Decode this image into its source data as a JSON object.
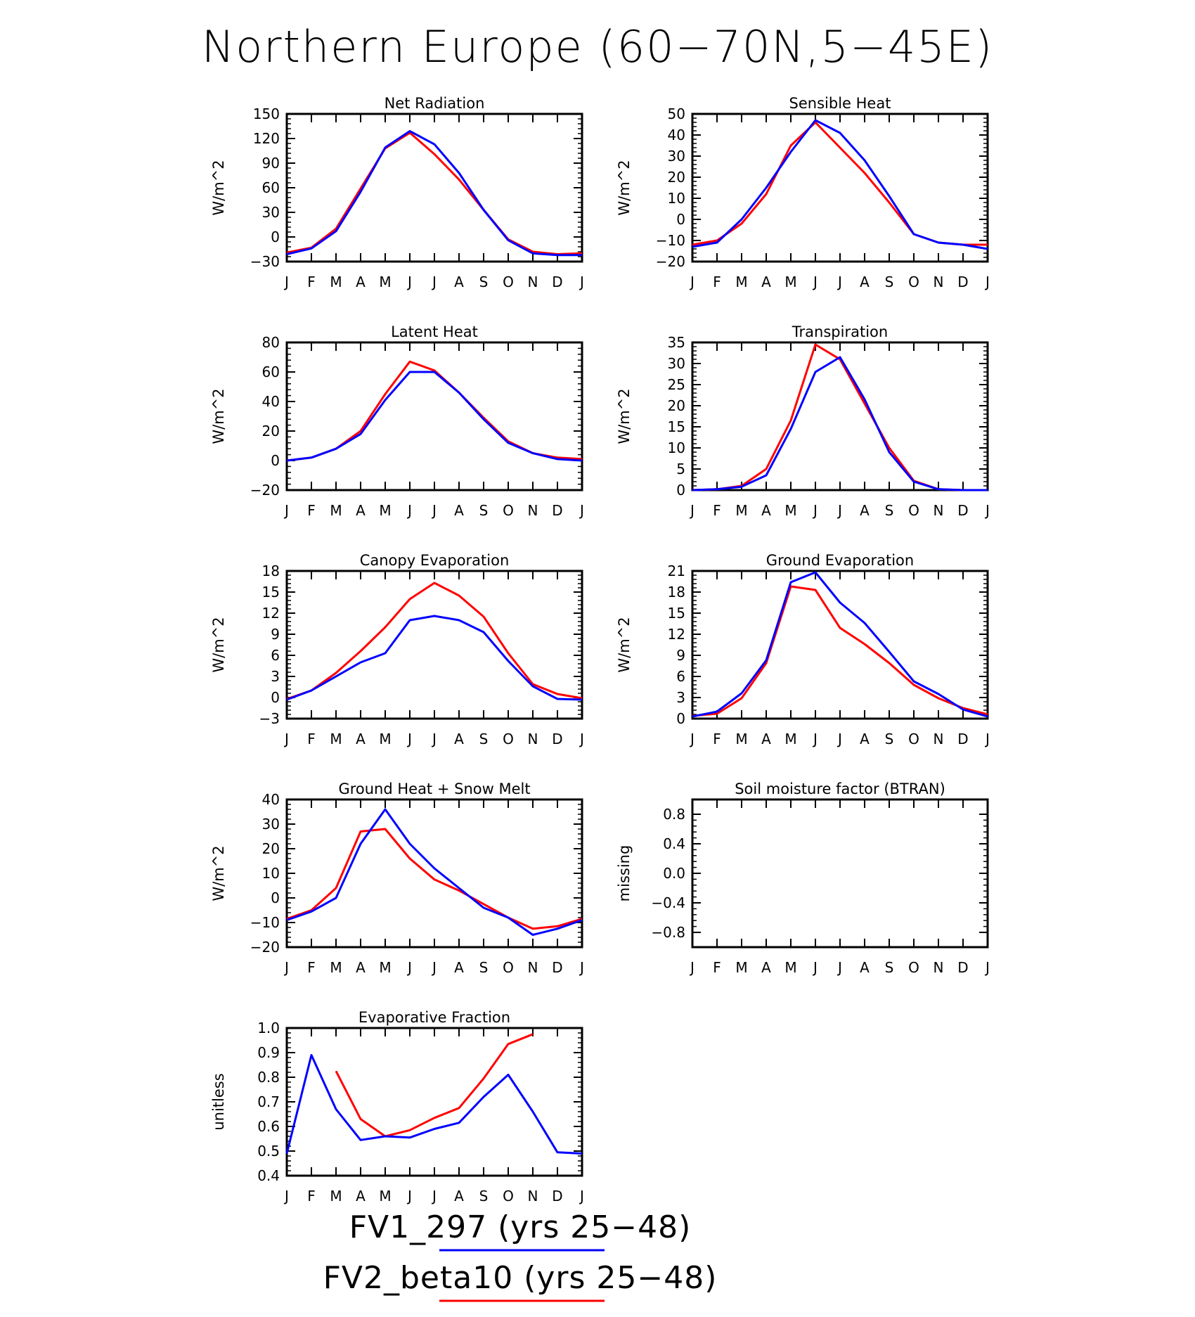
{
  "title": "Northern Europe (60−70N,5−45E)",
  "months": [
    "J",
    "F",
    "M",
    "A",
    "M",
    "J",
    "J",
    "A",
    "S",
    "O",
    "N",
    "D",
    "J"
  ],
  "colors": {
    "FV1_297": "#0000ff",
    "FV2_beta10": "#ff0000"
  },
  "legend": [
    {
      "label": "FV1_297 (yrs 25−48)",
      "color": "#0000ff"
    },
    {
      "label": "FV2_beta10 (yrs 25−48)",
      "color": "#ff0000"
    }
  ],
  "chart_data": [
    {
      "type": "line",
      "title": "Net Radiation",
      "ylabel": "W/m^2",
      "ylim": [
        -30,
        150
      ],
      "yticks": [
        -30,
        0,
        30,
        60,
        90,
        120,
        150
      ],
      "ytick_labels": [
        "−30",
        "0",
        "30",
        "60",
        "90",
        "120",
        "150"
      ],
      "series": [
        {
          "name": "FV1_297",
          "values": [
            -21,
            -14,
            7,
            55,
            109,
            129,
            113,
            78,
            33,
            -4,
            -20,
            -22,
            -22
          ]
        },
        {
          "name": "FV2_beta10",
          "values": [
            -19,
            -13,
            10,
            59,
            108,
            127,
            101,
            70,
            33,
            -3,
            -18,
            -21,
            -20
          ]
        }
      ]
    },
    {
      "type": "line",
      "title": "Sensible Heat",
      "ylabel": "W/m^2",
      "ylim": [
        -20,
        50
      ],
      "yticks": [
        -20,
        -10,
        0,
        10,
        20,
        30,
        40,
        50
      ],
      "ytick_labels": [
        "−20",
        "−10",
        "0",
        "10",
        "20",
        "30",
        "40",
        "50"
      ],
      "series": [
        {
          "name": "FV1_297",
          "values": [
            -13,
            -11,
            0,
            15,
            32,
            47,
            41,
            28,
            11,
            -7,
            -11,
            -12,
            -14
          ]
        },
        {
          "name": "FV2_beta10",
          "values": [
            -12,
            -10,
            -2,
            12,
            35,
            46,
            34,
            22,
            8,
            -7,
            -11,
            -12,
            -12
          ]
        }
      ]
    },
    {
      "type": "line",
      "title": "Latent Heat",
      "ylabel": "W/m^2",
      "ylim": [
        -20,
        80
      ],
      "yticks": [
        -20,
        0,
        20,
        40,
        60,
        80
      ],
      "ytick_labels": [
        "−20",
        "0",
        "20",
        "40",
        "60",
        "80"
      ],
      "series": [
        {
          "name": "FV1_297",
          "values": [
            0,
            2,
            8,
            18,
            41,
            60,
            60,
            46,
            28,
            12,
            5,
            1,
            0
          ]
        },
        {
          "name": "FV2_beta10",
          "values": [
            0,
            2,
            8,
            20,
            45,
            67,
            61,
            46,
            29,
            13,
            5,
            2,
            1
          ]
        }
      ]
    },
    {
      "type": "line",
      "title": "Transpiration",
      "ylabel": "W/m^2",
      "ylim": [
        0,
        35
      ],
      "yticks": [
        0,
        5,
        10,
        15,
        20,
        25,
        30,
        35
      ],
      "ytick_labels": [
        "0",
        "5",
        "10",
        "15",
        "20",
        "25",
        "30",
        "35"
      ],
      "series": [
        {
          "name": "FV1_297",
          "values": [
            0,
            0.2,
            0.8,
            3.5,
            14.5,
            28,
            31.5,
            21.5,
            9,
            2,
            0.2,
            0,
            0
          ]
        },
        {
          "name": "FV2_beta10",
          "values": [
            0,
            0.2,
            1,
            5,
            16.5,
            34.5,
            31,
            20.5,
            10,
            2.2,
            0.2,
            0,
            0
          ]
        }
      ]
    },
    {
      "type": "line",
      "title": "Canopy Evaporation",
      "ylabel": "W/m^2",
      "ylim": [
        -3,
        18
      ],
      "yticks": [
        -3,
        0,
        3,
        6,
        9,
        12,
        15,
        18
      ],
      "ytick_labels": [
        "−3",
        "0",
        "3",
        "6",
        "9",
        "12",
        "15",
        "18"
      ],
      "series": [
        {
          "name": "FV1_297",
          "values": [
            -0.3,
            1,
            3,
            5,
            6.3,
            11,
            11.6,
            11,
            9.3,
            5.2,
            1.6,
            -0.2,
            -0.3
          ]
        },
        {
          "name": "FV2_beta10",
          "values": [
            -0.2,
            1,
            3.5,
            6.6,
            10,
            14,
            16.3,
            14.5,
            11.5,
            6.3,
            1.9,
            0.5,
            -0.1
          ]
        }
      ]
    },
    {
      "type": "line",
      "title": "Ground Evaporation",
      "ylabel": "W/m^2",
      "ylim": [
        0,
        21
      ],
      "yticks": [
        0,
        3,
        6,
        9,
        12,
        15,
        18,
        21
      ],
      "ytick_labels": [
        "0",
        "3",
        "6",
        "9",
        "12",
        "15",
        "18",
        "21"
      ],
      "series": [
        {
          "name": "FV1_297",
          "values": [
            0.3,
            1,
            3.6,
            8.3,
            19.4,
            20.8,
            16.5,
            13.6,
            9.5,
            5.3,
            3.5,
            1.3,
            0.3
          ]
        },
        {
          "name": "FV2_beta10",
          "values": [
            0.4,
            0.7,
            2.9,
            7.9,
            18.8,
            18.3,
            12.9,
            10.6,
            7.9,
            4.8,
            2.9,
            1.5,
            0.6
          ]
        }
      ]
    },
    {
      "type": "line",
      "title": "Ground Heat + Snow Melt",
      "ylabel": "W/m^2",
      "ylim": [
        -20,
        40
      ],
      "yticks": [
        -20,
        -10,
        0,
        10,
        20,
        30,
        40
      ],
      "ytick_labels": [
        "−20",
        "−10",
        "0",
        "10",
        "20",
        "30",
        "40"
      ],
      "series": [
        {
          "name": "FV1_297",
          "values": [
            -9,
            -5.5,
            0,
            22,
            36,
            22,
            12,
            4,
            -4,
            -8,
            -15,
            -12.5,
            -9
          ]
        },
        {
          "name": "FV2_beta10",
          "values": [
            -8.5,
            -5,
            4,
            27,
            28,
            16,
            7.5,
            3,
            -2.5,
            -8,
            -12.5,
            -11.5,
            -8.5
          ]
        }
      ]
    },
    {
      "type": "line",
      "title": "Soil moisture factor (BTRAN)",
      "ylabel": "missing",
      "ylim": [
        -1.0,
        1.0
      ],
      "yticks": [
        -0.8,
        -0.4,
        0.0,
        0.4,
        0.8
      ],
      "ytick_labels": [
        "−0.8",
        "−0.4",
        "0.0",
        "0.4",
        "0.8"
      ],
      "series": []
    },
    {
      "type": "line",
      "title": "Evaporative Fraction",
      "ylabel": "unitless",
      "ylim": [
        0.4,
        1.0
      ],
      "yticks": [
        0.4,
        0.5,
        0.6,
        0.7,
        0.8,
        0.9,
        1.0
      ],
      "ytick_labels": [
        "0.4",
        "0.5",
        "0.6",
        "0.7",
        "0.8",
        "0.9",
        "1.0"
      ],
      "series": [
        {
          "name": "FV1_297",
          "values": [
            0.49,
            0.89,
            0.67,
            0.545,
            0.56,
            0.555,
            0.59,
            0.615,
            0.72,
            0.81,
            0.66,
            0.495,
            0.49
          ]
        },
        {
          "name": "FV2_beta10",
          "values": [
            null,
            null,
            0.825,
            0.63,
            0.56,
            0.585,
            0.635,
            0.675,
            0.795,
            0.935,
            0.975,
            null,
            null
          ]
        }
      ]
    }
  ]
}
